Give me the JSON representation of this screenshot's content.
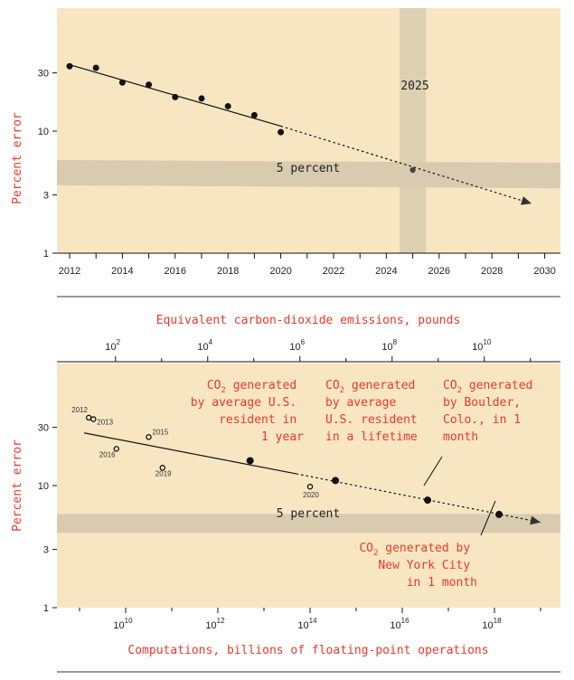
{
  "colors": {
    "panel_bg": "#f8e6c3",
    "band": "#d9cbb0",
    "red": "#e8392b",
    "ink": "#111111"
  },
  "chart_data": [
    {
      "type": "scatter",
      "ylabel": "Percent error",
      "y_scale": "log",
      "ylim": [
        1,
        60
      ],
      "yticks": [
        "1",
        "3",
        "10",
        "30"
      ],
      "xlim": [
        2011.5,
        2030.5
      ],
      "xticks": [
        "2012",
        "2014",
        "2016",
        "2018",
        "2020",
        "2022",
        "2024",
        "2026",
        "2028",
        "2030"
      ],
      "points": [
        {
          "x": 2012,
          "y": 34
        },
        {
          "x": 2013,
          "y": 33
        },
        {
          "x": 2014,
          "y": 25
        },
        {
          "x": 2015,
          "y": 24
        },
        {
          "x": 2016,
          "y": 19
        },
        {
          "x": 2017,
          "y": 18.5
        },
        {
          "x": 2018,
          "y": 16
        },
        {
          "x": 2019,
          "y": 13.5
        },
        {
          "x": 2020,
          "y": 9.8
        },
        {
          "x": 2025,
          "y": 4.8
        }
      ],
      "trend_solid": [
        [
          2012,
          35
        ],
        [
          2020,
          11
        ]
      ],
      "trend_dashed": [
        [
          2020,
          11
        ],
        [
          2029.5,
          2.55
        ]
      ],
      "band": {
        "label": "5 percent",
        "left_y": [
          5.8,
          3.6
        ],
        "right_y": [
          5.5,
          3.4
        ]
      },
      "vband": {
        "label": "2025",
        "x": [
          2024.5,
          2025.5
        ]
      }
    },
    {
      "type": "scatter",
      "xlabel": "Computations, billions of floating-point operations",
      "top_axis_label": "Equivalent carbon-dioxide emissions, pounds",
      "ylabel": "Percent error",
      "x_scale": "log",
      "y_scale": "log",
      "ylim": [
        1,
        60
      ],
      "yticks": [
        "1",
        "3",
        "10",
        "30"
      ],
      "bottom_ticks": [
        {
          "exp": 10,
          "base": "10",
          "sup": "10"
        },
        {
          "exp": 12,
          "base": "10",
          "sup": "12"
        },
        {
          "exp": 14,
          "base": "10",
          "sup": "14"
        },
        {
          "exp": 16,
          "base": "10",
          "sup": "16"
        },
        {
          "exp": 18,
          "base": "10",
          "sup": "18"
        }
      ],
      "top_ticks": [
        {
          "exp": 9.78,
          "base": "10",
          "sup": "2"
        },
        {
          "exp": 11.78,
          "base": "10",
          "sup": "4"
        },
        {
          "exp": 13.78,
          "base": "10",
          "sup": "6"
        },
        {
          "exp": 15.78,
          "base": "10",
          "sup": "8"
        },
        {
          "exp": 17.78,
          "base": "10",
          "sup": "10"
        }
      ],
      "points": [
        {
          "label": "2012",
          "x": 9.2,
          "y": 36
        },
        {
          "label": "2013",
          "x": 9.3,
          "y": 35
        },
        {
          "label": "2015",
          "x": 10.5,
          "y": 25
        },
        {
          "label": "2016",
          "x": 9.8,
          "y": 20
        },
        {
          "label": "2019",
          "x": 10.8,
          "y": 14
        },
        {
          "label": "2020",
          "x": 14.0,
          "y": 9.8
        }
      ],
      "trend_solid": [
        [
          9.1,
          27
        ],
        [
          13.7,
          12.5
        ]
      ],
      "trend_dashed": [
        [
          13.7,
          12.5
        ],
        [
          19.0,
          5.0
        ]
      ],
      "markers": [
        {
          "x": 12.7,
          "y": 16
        },
        {
          "x": 14.55,
          "y": 11
        },
        {
          "x": 16.55,
          "y": 7.6
        },
        {
          "x": 18.1,
          "y": 5.8
        }
      ],
      "band": {
        "label": "5 percent",
        "y": [
          4.1,
          5.85
        ]
      },
      "annotations": [
        {
          "head": "CO",
          "sub": "2",
          "lines": [
            " generated",
            "by average U.S.",
            "resident in",
            "1 year"
          ]
        },
        {
          "head": "CO",
          "sub": "2",
          "lines": [
            " generated",
            "by average",
            "U.S. resident",
            "in a lifetime"
          ]
        },
        {
          "head": "CO",
          "sub": "2",
          "lines": [
            " generated",
            "by Boulder,",
            "Colo., in 1",
            "month"
          ]
        },
        {
          "head": "CO",
          "sub": "2",
          "lines": [
            " generated by",
            "New York City",
            "in 1 month"
          ]
        }
      ]
    }
  ]
}
